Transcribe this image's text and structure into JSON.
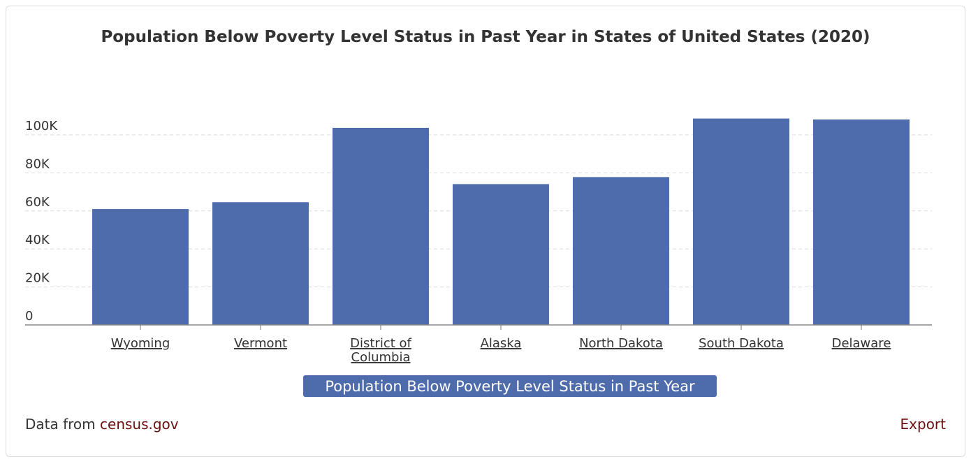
{
  "chart_data": {
    "type": "bar",
    "title": "Population Below Poverty Level Status in Past Year in States of United States (2020)",
    "categories": [
      "Wyoming",
      "Vermont",
      "District of Columbia",
      "Alaska",
      "North Dakota",
      "South Dakota",
      "Delaware"
    ],
    "category_lines": [
      [
        "Wyoming"
      ],
      [
        "Vermont"
      ],
      [
        "District of",
        "Columbia"
      ],
      [
        "Alaska"
      ],
      [
        "North Dakota"
      ],
      [
        "South Dakota"
      ],
      [
        "Delaware"
      ]
    ],
    "values": [
      61000,
      64600,
      103700,
      74100,
      77800,
      108600,
      108100
    ],
    "ylim": [
      0,
      100000
    ],
    "yticks": [
      0,
      20000,
      40000,
      60000,
      80000,
      100000
    ],
    "ytick_labels": [
      "0",
      "20K",
      "40K",
      "60K",
      "80K",
      "100K"
    ],
    "legend": "Population Below Poverty Level Status in Past Year",
    "legend_position": "bottom",
    "grid": true,
    "bar_color": "#4e6cac"
  },
  "footer": {
    "source_prefix": "Data from",
    "source_link": "census.gov",
    "export_label": "Export"
  }
}
